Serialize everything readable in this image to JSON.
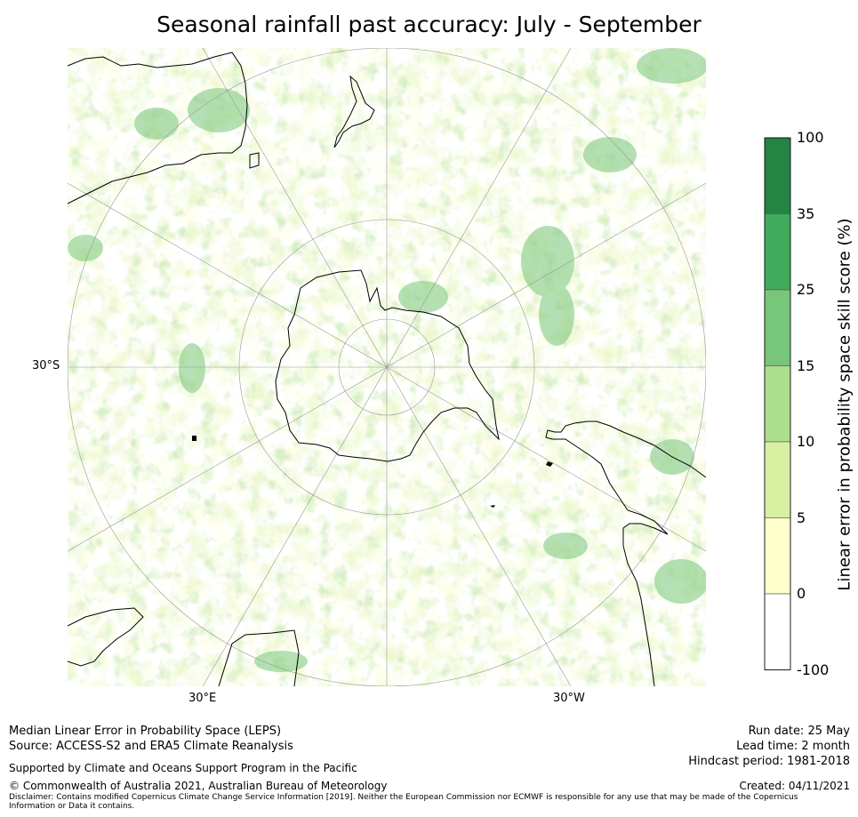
{
  "title": "Seasonal rainfall past accuracy: July - September",
  "map": {
    "projection": "south-polar-stereographic",
    "lat_labels": [
      "30°S"
    ],
    "lon_labels": [
      "30°E",
      "30°W"
    ],
    "colors": {
      "coast": "#000000",
      "graticule": "#999999"
    }
  },
  "colorbar": {
    "title": "Linear error in probability space skill score (%)",
    "ticks": [
      "100",
      "35",
      "25",
      "15",
      "10",
      "5",
      "0",
      "-100"
    ],
    "bins": [
      {
        "from": "35",
        "to": "100",
        "color": "#238443"
      },
      {
        "from": "25",
        "to": "35",
        "color": "#41ab5d"
      },
      {
        "from": "15",
        "to": "25",
        "color": "#78c679"
      },
      {
        "from": "10",
        "to": "15",
        "color": "#addd8e"
      },
      {
        "from": "5",
        "to": "10",
        "color": "#d9f0a3"
      },
      {
        "from": "0",
        "to": "5",
        "color": "#ffffcc"
      },
      {
        "from": "-100",
        "to": "0",
        "color": "#ffffff"
      }
    ]
  },
  "footer": {
    "left_line1": "Median Linear Error in Probability Space (LEPS)",
    "left_line2": "Source: ACCESS-S2 and ERA5 Climate Reanalysis",
    "support": "Supported by Climate and Oceans Support Program in the Pacific",
    "copyright": "© Commonwealth of Australia 2021, Australian Bureau of Meteorology",
    "run_date": "Run date: 25 May",
    "lead_time": "Lead time: 2 month",
    "hindcast": "Hindcast period: 1981-2018",
    "created": "Created: 04/11/2021",
    "disclaimer": "Disclaimer: Contains modified Copernicus Climate Change Service Information [2019]. Neither the European Commission nor ECMWF is responsible for any use that may be made of the Copernicus Information or Data it contains."
  }
}
